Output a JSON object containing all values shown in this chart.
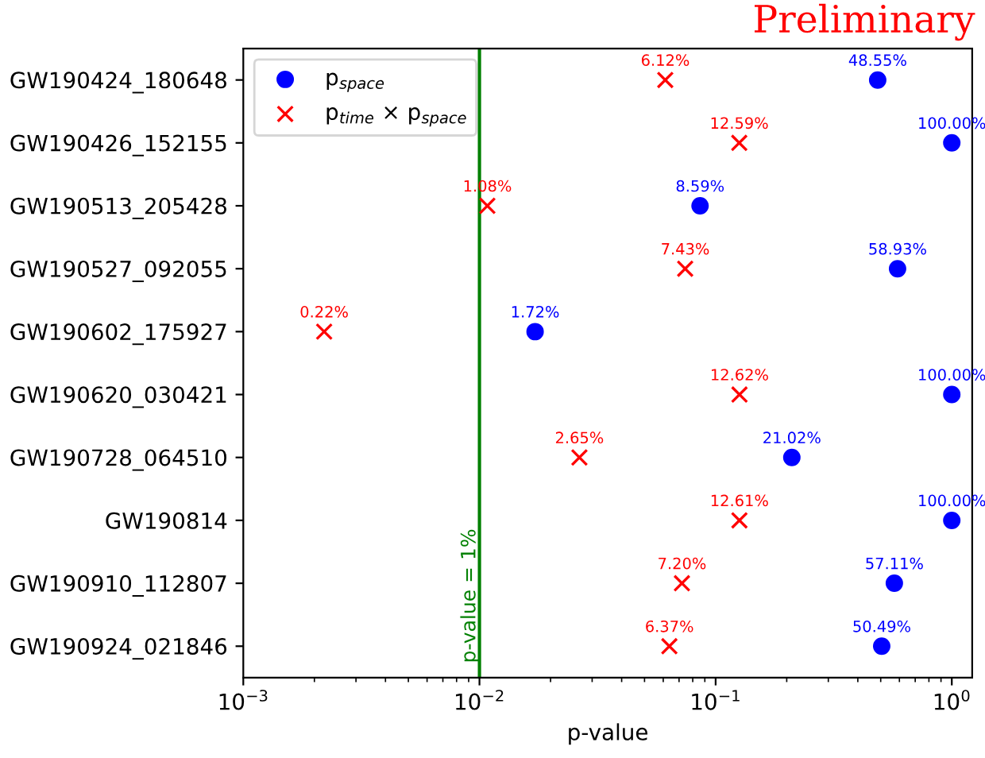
{
  "chart_data": {
    "type": "scatter",
    "orientation": "horizontal",
    "title": "Preliminary",
    "xlabel": "p-value",
    "categories": [
      "GW190424_180648",
      "GW190426_152155",
      "GW190513_205428",
      "GW190527_092055",
      "GW190602_175927",
      "GW190620_030421",
      "GW190728_064510",
      "GW190814",
      "GW190910_112807",
      "GW190924_021846"
    ],
    "series": [
      {
        "name": "p$_{space}$",
        "color": "#0000ff",
        "marker": "circle",
        "values": [
          0.4855,
          1.0,
          0.0859,
          0.5893,
          0.0172,
          1.0,
          0.2102,
          1.0,
          0.5711,
          0.5049
        ],
        "value_labels": [
          "48.55%",
          "100.00%",
          "8.59%",
          "58.93%",
          "1.72%",
          "100.00%",
          "21.02%",
          "100.00%",
          "57.11%",
          "50.49%"
        ]
      },
      {
        "name": "p$_{time}$ × p$_{space}$",
        "color": "#ff0000",
        "marker": "cross",
        "values": [
          0.0612,
          0.1259,
          0.0108,
          0.0743,
          0.0022,
          0.1262,
          0.0265,
          0.1261,
          0.072,
          0.0637
        ],
        "value_labels": [
          "6.12%",
          "12.59%",
          "1.08%",
          "7.43%",
          "0.22%",
          "12.62%",
          "2.65%",
          "12.61%",
          "7.20%",
          "6.37%"
        ]
      }
    ],
    "log": "x",
    "xlim": [
      0.001,
      1.22
    ],
    "xticks": [
      {
        "value": 0.001,
        "label": "10$^{−3}$"
      },
      {
        "value": 0.01,
        "label": "10$^{−2}$"
      },
      {
        "value": 0.1,
        "label": "10$^{−1}$"
      },
      {
        "value": 1,
        "label": "10$^{0}$"
      }
    ],
    "ref_lines": [
      {
        "axis": "x",
        "value": 0.01,
        "label": "p-value = 1%",
        "color": "#008000"
      }
    ],
    "legend": "top left",
    "grid": false
  }
}
